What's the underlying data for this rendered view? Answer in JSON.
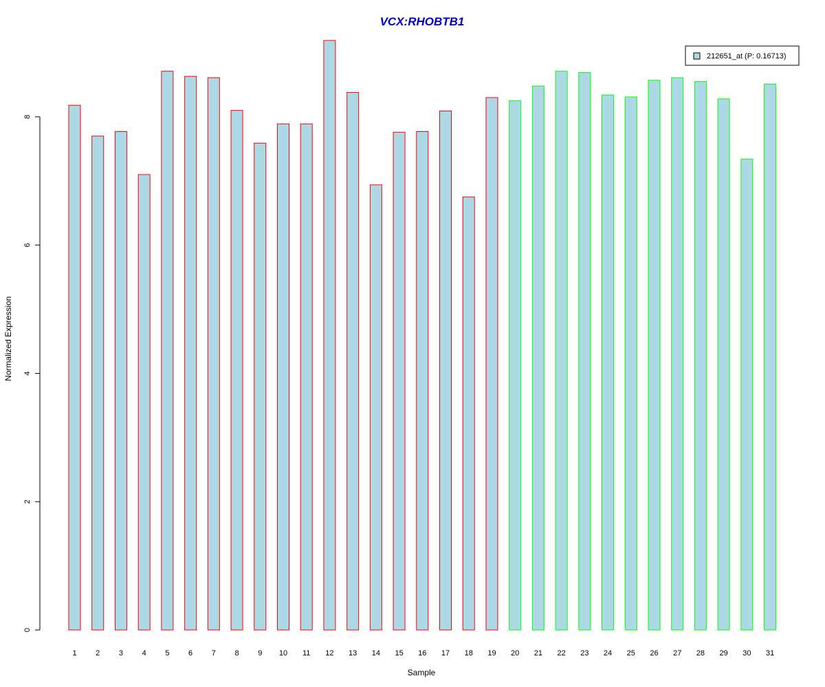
{
  "chart_data": {
    "type": "bar",
    "title": "VCX:RHOBTB1",
    "xlabel": "Sample",
    "ylabel": "Normalized Expression",
    "ylim": [
      0,
      9.2
    ],
    "yticks": [
      0,
      2,
      4,
      6,
      8
    ],
    "grid": false,
    "legend_position": "top-right",
    "categories": [
      "1",
      "2",
      "3",
      "4",
      "5",
      "6",
      "7",
      "8",
      "9",
      "10",
      "11",
      "12",
      "13",
      "14",
      "15",
      "16",
      "17",
      "18",
      "19",
      "20",
      "21",
      "22",
      "23",
      "24",
      "25",
      "26",
      "27",
      "28",
      "29",
      "30",
      "31"
    ],
    "series": [
      {
        "name": "212651_at (P: 0.16713)",
        "fill_color": "#add8e6",
        "values": [
          8.18,
          7.7,
          7.77,
          7.1,
          8.71,
          8.63,
          8.61,
          8.1,
          7.59,
          7.89,
          7.89,
          9.19,
          8.38,
          6.94,
          7.76,
          7.77,
          8.09,
          6.75,
          8.3,
          8.25,
          8.48,
          8.71,
          8.69,
          8.34,
          8.31,
          8.57,
          8.61,
          8.55,
          8.28,
          7.34,
          8.51
        ],
        "border_colors": [
          "#ff0000",
          "#ff0000",
          "#ff0000",
          "#ff0000",
          "#ff0000",
          "#ff0000",
          "#ff0000",
          "#ff0000",
          "#ff0000",
          "#ff0000",
          "#ff0000",
          "#ff0000",
          "#ff0000",
          "#ff0000",
          "#ff0000",
          "#ff0000",
          "#ff0000",
          "#ff0000",
          "#ff0000",
          "#00ff00",
          "#00ff00",
          "#00ff00",
          "#00ff00",
          "#00ff00",
          "#00ff00",
          "#00ff00",
          "#00ff00",
          "#00ff00",
          "#00ff00",
          "#00ff00",
          "#00ff00"
        ]
      }
    ],
    "colors": {
      "title": "#0000cd",
      "bar_fill": "#add8e6",
      "group_a_border": "#ff0000",
      "group_b_border": "#00ff00"
    }
  }
}
